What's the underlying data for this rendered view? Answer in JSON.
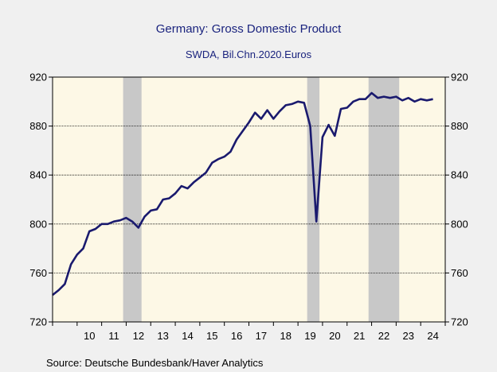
{
  "chart_data": {
    "type": "line",
    "title": "Germany: Gross Domestic Product",
    "subtitle": "SWDA, Bil.Chn.2020.Euros",
    "source": "Source:  Deutsche Bundesbank/Haver Analytics",
    "ylim": [
      720,
      920
    ],
    "yticks": [
      720,
      760,
      800,
      840,
      880,
      920
    ],
    "y_tick_labels": [
      "720",
      "760",
      "800",
      "840",
      "880",
      "920"
    ],
    "xlim": [
      2009.0,
      2025.0
    ],
    "x_tick_labels": [
      "10",
      "11",
      "12",
      "13",
      "14",
      "15",
      "16",
      "17",
      "18",
      "19",
      "20",
      "21",
      "22",
      "23",
      "24"
    ],
    "x_tick_positions": [
      2010,
      2011,
      2012,
      2013,
      2014,
      2015,
      2016,
      2017,
      2018,
      2019,
      2020,
      2021,
      2022,
      2023,
      2024
    ],
    "grid": true,
    "recessions": [
      [
        2011.875,
        2012.625
      ],
      [
        2019.375,
        2019.875
      ],
      [
        2021.875,
        2023.125
      ]
    ],
    "colors": {
      "line": "#1a1a6e",
      "plot_bg": "#fdf8e6",
      "recession": "#c8c8c8",
      "text": "#1a237e"
    },
    "series": [
      {
        "x": [
          2009.0,
          2009.25,
          2009.5,
          2009.75,
          2010.0,
          2010.25,
          2010.5,
          2010.75,
          2011.0,
          2011.25,
          2011.5,
          2011.75,
          2012.0,
          2012.25,
          2012.5,
          2012.75,
          2013.0,
          2013.25,
          2013.5,
          2013.75,
          2014.0,
          2014.25,
          2014.5,
          2014.75,
          2015.0,
          2015.25,
          2015.5,
          2015.75,
          2016.0,
          2016.25,
          2016.5,
          2016.75,
          2017.0,
          2017.25,
          2017.5,
          2017.75,
          2018.0,
          2018.25,
          2018.5,
          2018.75,
          2019.0,
          2019.25,
          2019.5,
          2019.75,
          2020.0,
          2020.25,
          2020.5,
          2020.75,
          2021.0,
          2021.25,
          2021.5,
          2021.75,
          2022.0,
          2022.25,
          2022.5,
          2022.75,
          2023.0,
          2023.25,
          2023.5,
          2023.75,
          2024.0,
          2024.25,
          2024.5
        ],
        "values": [
          742,
          746,
          751,
          767,
          775,
          780,
          794,
          796,
          800,
          800,
          802,
          803,
          805,
          802,
          797,
          806,
          811,
          812,
          820,
          821,
          825,
          831,
          829,
          834,
          838,
          842,
          850,
          853,
          855,
          859,
          869,
          876,
          883,
          891,
          886,
          893,
          886,
          892,
          897,
          898,
          900,
          899,
          880,
          802,
          871,
          881,
          872,
          894,
          895,
          900,
          902,
          902,
          907,
          903,
          904,
          903,
          904,
          901,
          903,
          900,
          902,
          901,
          902
        ]
      }
    ]
  }
}
